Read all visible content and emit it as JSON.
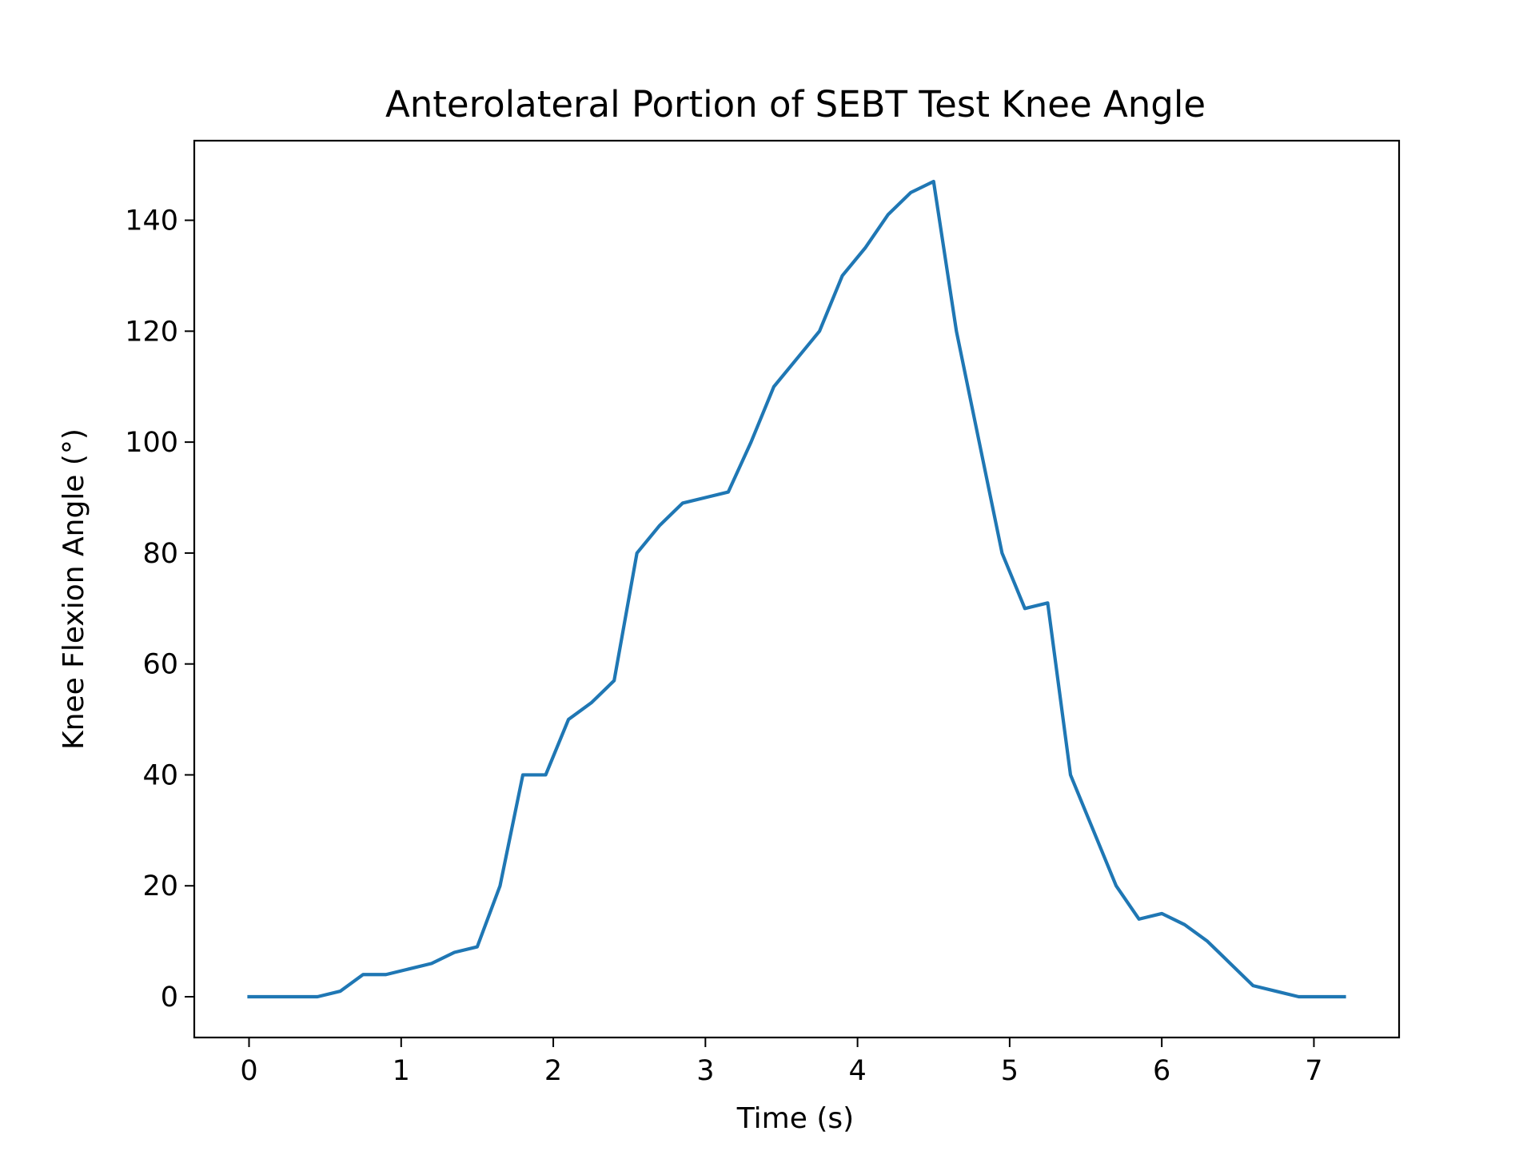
{
  "chart_data": {
    "type": "line",
    "title": "Anterolateral Portion of SEBT Test Knee Angle",
    "xlabel": "Time (s)",
    "ylabel": "Knee Flexion Angle (°)",
    "xlim": [
      -0.36,
      7.56
    ],
    "ylim": [
      -7.35,
      154.35
    ],
    "x_ticks": [
      0,
      1,
      2,
      3,
      4,
      5,
      6,
      7
    ],
    "y_ticks": [
      0,
      20,
      40,
      60,
      80,
      100,
      120,
      140
    ],
    "grid": false,
    "line_color": "#1f77b4",
    "series": [
      {
        "x": [
          0,
          0.15,
          0.3,
          0.45,
          0.6,
          0.75,
          0.9,
          1.05,
          1.2,
          1.35,
          1.5,
          1.65,
          1.8,
          1.95,
          2.1,
          2.25,
          2.4,
          2.55,
          2.7,
          2.85,
          3.0,
          3.15,
          3.3,
          3.45,
          3.6,
          3.75,
          3.9,
          4.05,
          4.2,
          4.35,
          4.5,
          4.65,
          4.8,
          4.95,
          5.1,
          5.25,
          5.4,
          5.55,
          5.7,
          5.85,
          6.0,
          6.15,
          6.3,
          6.45,
          6.6,
          6.75,
          6.9,
          7.05,
          7.2
        ],
        "values": [
          0,
          0,
          0,
          0,
          1,
          4,
          4,
          5,
          6,
          8,
          9,
          20,
          40,
          40,
          50,
          53,
          57,
          80,
          85,
          89,
          90,
          91,
          100,
          110,
          115,
          120,
          130,
          135,
          141,
          145,
          147,
          120,
          100,
          80,
          70,
          71,
          40,
          30,
          20,
          14,
          15,
          13,
          10,
          6,
          2,
          1,
          0,
          0,
          0
        ]
      }
    ]
  }
}
